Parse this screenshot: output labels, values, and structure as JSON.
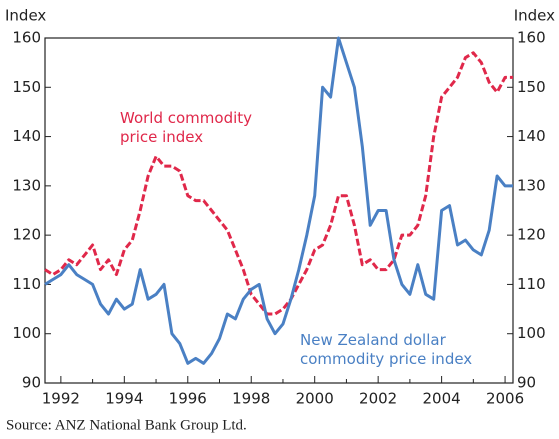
{
  "chart_data": {
    "type": "line",
    "y_label_left": "Index",
    "y_label_right": "Index",
    "source": "Source: ANZ National Bank Group Ltd.",
    "xlim": [
      1991.5,
      2006.25
    ],
    "xticks": [
      1992,
      1994,
      1996,
      1998,
      2000,
      2002,
      2004,
      2006
    ],
    "ylim": [
      90,
      160
    ],
    "yticks": [
      90,
      100,
      110,
      120,
      130,
      140,
      150,
      160
    ],
    "y2lim": [
      90,
      160
    ],
    "y2ticks": [
      90,
      100,
      110,
      120,
      130,
      140,
      150,
      160
    ],
    "x": [
      1991.5,
      1991.75,
      1992,
      1992.25,
      1992.5,
      1992.75,
      1993,
      1993.25,
      1993.5,
      1993.75,
      1994,
      1994.25,
      1994.5,
      1994.75,
      1995,
      1995.25,
      1995.5,
      1995.75,
      1996,
      1996.25,
      1996.5,
      1996.75,
      1997,
      1997.25,
      1997.5,
      1997.75,
      1998,
      1998.25,
      1998.5,
      1998.75,
      1999,
      1999.25,
      1999.5,
      1999.75,
      2000,
      2000.25,
      2000.5,
      2000.75,
      2001,
      2001.25,
      2001.5,
      2001.75,
      2002,
      2002.25,
      2002.5,
      2002.75,
      2003,
      2003.25,
      2003.5,
      2003.75,
      2004,
      2004.25,
      2004.5,
      2004.75,
      2005,
      2005.25,
      2005.5,
      2005.75,
      2006,
      2006.25
    ],
    "series": [
      {
        "label": [
          "World commodity",
          "price index"
        ],
        "color": "#e0284a",
        "dash": true,
        "values": [
          113,
          112,
          113,
          115,
          114,
          116,
          118,
          113,
          115,
          112,
          117,
          119,
          125,
          132,
          136,
          134,
          134,
          133,
          128,
          127,
          127,
          125,
          123,
          121,
          117,
          113,
          108,
          106,
          104,
          104,
          105,
          107,
          110,
          113,
          117,
          118,
          122,
          128,
          128,
          122,
          114,
          115,
          113,
          113,
          115,
          120,
          120,
          122,
          128,
          140,
          148,
          150,
          152,
          156,
          157,
          155,
          151,
          149,
          152,
          152
        ]
      },
      {
        "label": [
          "New Zealand dollar",
          "commodity price index"
        ],
        "color": "#4a80c4",
        "dash": false,
        "values": [
          110,
          111,
          112,
          114,
          112,
          111,
          110,
          106,
          104,
          107,
          105,
          106,
          113,
          107,
          108,
          110,
          100,
          98,
          94,
          95,
          94,
          96,
          99,
          104,
          103,
          107,
          109,
          110,
          103,
          100,
          102,
          107,
          113,
          120,
          128,
          150,
          148,
          160,
          155,
          150,
          138,
          122,
          125,
          125,
          115,
          110,
          108,
          114,
          108,
          107,
          125,
          126,
          118,
          119,
          117,
          116,
          121,
          132,
          130,
          130
        ]
      }
    ]
  }
}
